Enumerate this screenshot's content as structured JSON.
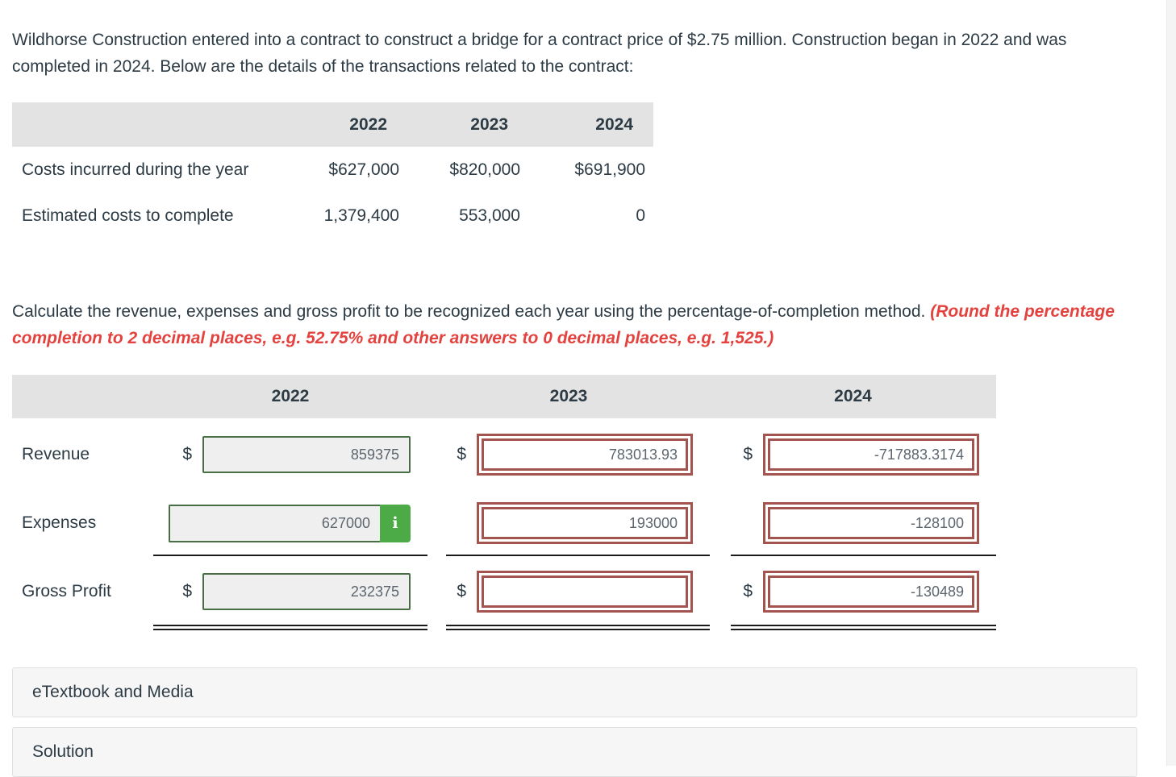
{
  "problem": {
    "text": "Wildhorse Construction entered into a contract to construct a bridge for a contract price of $2.75 million. Construction began in 2022 and was completed in 2024. Below are the details of the transactions related to the contract:"
  },
  "cost_table": {
    "years": [
      "2022",
      "2023",
      "2024"
    ],
    "rows": [
      {
        "label": "Costs incurred during the year",
        "values": [
          "$627,000",
          "$820,000",
          "$691,900"
        ]
      },
      {
        "label": "Estimated costs to complete",
        "values": [
          "1,379,400",
          "553,000",
          "0"
        ]
      }
    ]
  },
  "instruction": {
    "normal": "Calculate the revenue, expenses and gross profit to be recognized each year using the percentage-of-completion method.",
    "emphasis": "(Round the percentage completion to 2 decimal places, e.g. 52.75% and other answers to 0 decimal places, e.g. 1,525.)"
  },
  "answer_table": {
    "years": [
      "2022",
      "2023",
      "2024"
    ],
    "info_label": "i",
    "rows": [
      {
        "label": "Revenue",
        "cells": [
          {
            "currency": "$",
            "value": "859375",
            "state": "graded-correct"
          },
          {
            "currency": "$",
            "value": "783013.93",
            "state": "error"
          },
          {
            "currency": "$",
            "value": "-717883.3174",
            "state": "error"
          }
        ]
      },
      {
        "label": "Expenses",
        "cells": [
          {
            "currency": "",
            "value": "627000",
            "state": "graded-correct",
            "has_info": true
          },
          {
            "currency": "",
            "value": "193000",
            "state": "error"
          },
          {
            "currency": "",
            "value": "-128100",
            "state": "error"
          }
        ]
      },
      {
        "label": "Gross Profit",
        "cells": [
          {
            "currency": "$",
            "value": "232375",
            "state": "graded-correct"
          },
          {
            "currency": "$",
            "value": "",
            "state": "error"
          },
          {
            "currency": "$",
            "value": "-130489",
            "state": "error"
          }
        ]
      }
    ]
  },
  "sections": {
    "etextbook": "eTextbook and Media",
    "solution": "Solution"
  },
  "colors": {
    "correct_border": "#476e45",
    "error_border": "#a3544e",
    "info_button_green": "#4caa47",
    "instruction_red": "#e3423e",
    "header_band_gray": "#e3e3e3"
  }
}
